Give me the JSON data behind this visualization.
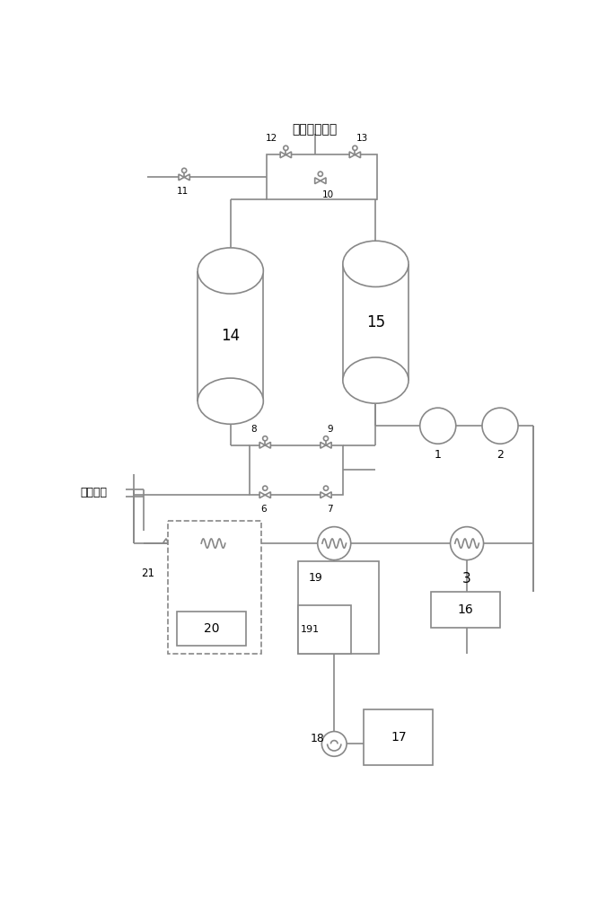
{
  "bg_color": "#ffffff",
  "line_color": "#888888",
  "lw": 1.2,
  "label_top": "洁净气排放口",
  "label_left": "油气进口"
}
